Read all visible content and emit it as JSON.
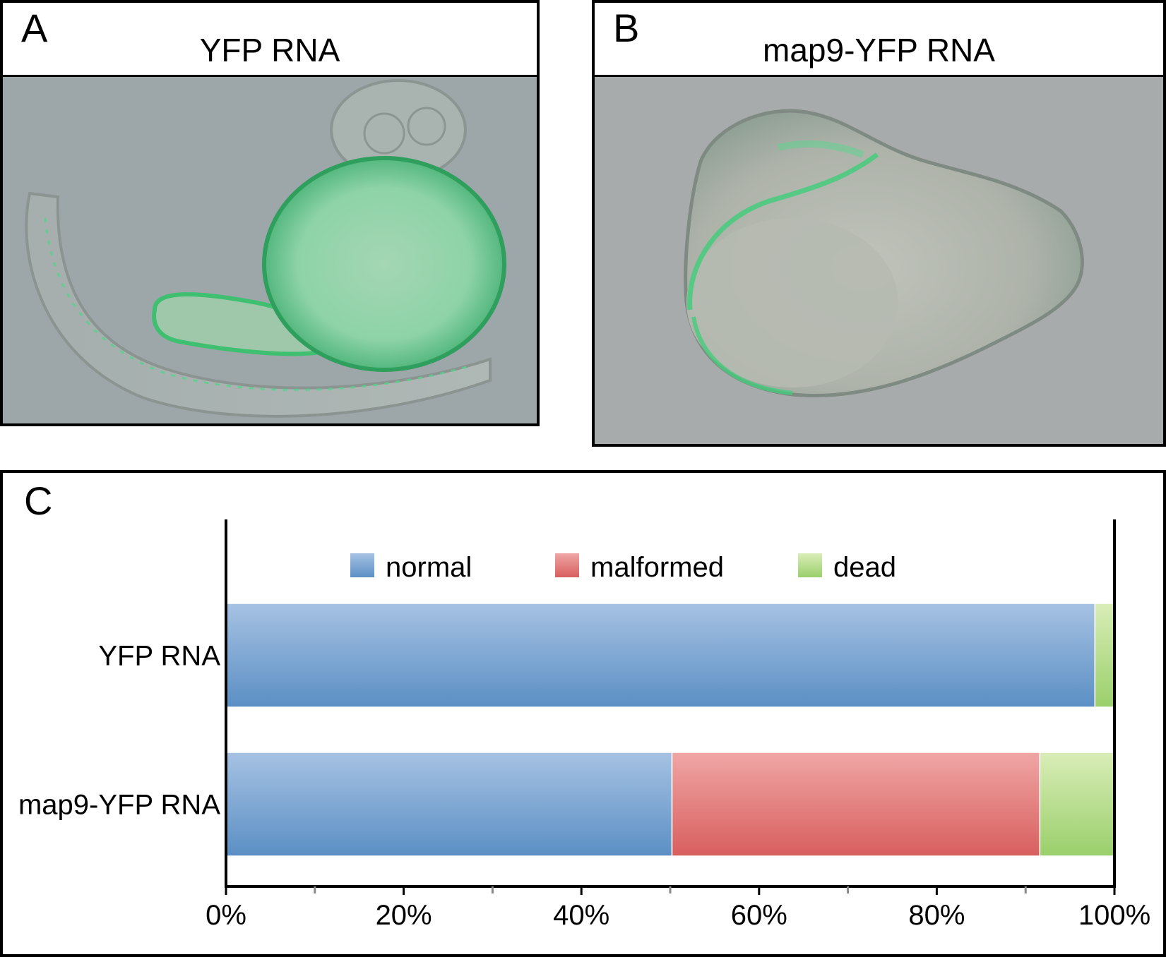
{
  "panel_a": {
    "letter": "A",
    "caption": "YFP RNA",
    "image": "zebrafish-embryo-curved-tail-micrograph"
  },
  "panel_b": {
    "letter": "B",
    "caption": "map9-YFP RNA",
    "image": "malformed-zebrafish-embryo-micrograph"
  },
  "panel_c": {
    "letter": "C"
  },
  "colors": {
    "normal": "#6f9ccc",
    "malformed": "#e07674",
    "dead": "#b3d88a",
    "micrograph_background": "#9aa3a6",
    "fluorescence": "#3fd07a"
  },
  "chart_data": {
    "type": "bar",
    "orientation": "horizontal",
    "stacked": "100%",
    "categories": [
      "YFP RNA",
      "map9-YFP RNA"
    ],
    "series": [
      {
        "name": "normal",
        "values": [
          97.8,
          50.2
        ]
      },
      {
        "name": "malformed",
        "values": [
          0.0,
          41.4
        ]
      },
      {
        "name": "dead",
        "values": [
          2.2,
          8.4
        ]
      }
    ],
    "xlim": [
      0,
      100
    ],
    "xticks": [
      "0%",
      "20%",
      "40%",
      "60%",
      "80%",
      "100%"
    ],
    "legend_position": "top",
    "grid": false
  }
}
